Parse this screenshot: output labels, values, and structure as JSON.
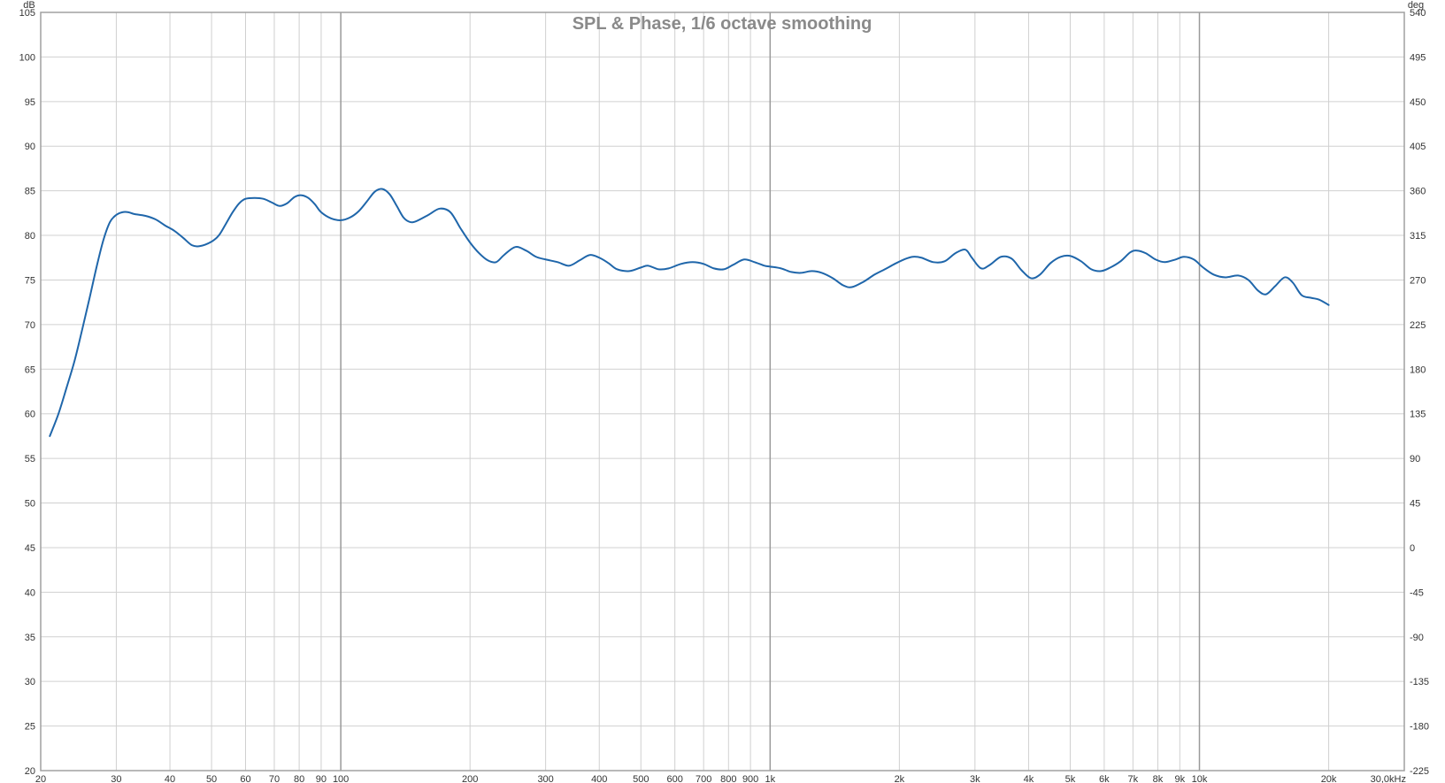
{
  "chart_data": {
    "type": "line",
    "title": "SPL & Phase, 1/6 octave smoothing",
    "y_unit_left": "dB",
    "y_unit_right": "deg",
    "x_scale": "log",
    "xlim": [
      20,
      30000
    ],
    "ylim_left": [
      20,
      105
    ],
    "ylim_right": [
      -225,
      540
    ],
    "grid": true,
    "x_ticks": [
      {
        "value": 20,
        "label": "20"
      },
      {
        "value": 30,
        "label": "30"
      },
      {
        "value": 40,
        "label": "40"
      },
      {
        "value": 50,
        "label": "50"
      },
      {
        "value": 60,
        "label": "60"
      },
      {
        "value": 70,
        "label": "70"
      },
      {
        "value": 80,
        "label": "80"
      },
      {
        "value": 90,
        "label": "90"
      },
      {
        "value": 100,
        "label": "100"
      },
      {
        "value": 200,
        "label": "200"
      },
      {
        "value": 300,
        "label": "300"
      },
      {
        "value": 400,
        "label": "400"
      },
      {
        "value": 500,
        "label": "500"
      },
      {
        "value": 600,
        "label": "600"
      },
      {
        "value": 700,
        "label": "700"
      },
      {
        "value": 800,
        "label": "800"
      },
      {
        "value": 900,
        "label": "900"
      },
      {
        "value": 1000,
        "label": "1k"
      },
      {
        "value": 2000,
        "label": "2k"
      },
      {
        "value": 3000,
        "label": "3k"
      },
      {
        "value": 4000,
        "label": "4k"
      },
      {
        "value": 5000,
        "label": "5k"
      },
      {
        "value": 6000,
        "label": "6k"
      },
      {
        "value": 7000,
        "label": "7k"
      },
      {
        "value": 8000,
        "label": "8k"
      },
      {
        "value": 9000,
        "label": "9k"
      },
      {
        "value": 10000,
        "label": "10k"
      },
      {
        "value": 20000,
        "label": "20k"
      },
      {
        "value": 30000,
        "label": "30,0kHz"
      }
    ],
    "x_major_ticks": [
      100,
      1000,
      10000
    ],
    "y_left_ticks": [
      105,
      100,
      95,
      90,
      85,
      80,
      75,
      70,
      65,
      60,
      55,
      50,
      45,
      40,
      35,
      30,
      25,
      20
    ],
    "y_right_ticks": [
      540,
      495,
      450,
      405,
      360,
      315,
      270,
      225,
      180,
      135,
      90,
      45,
      0,
      -45,
      -90,
      -135,
      -180,
      -225
    ],
    "series": [
      {
        "color": "#1f66aa",
        "points": [
          [
            21,
            57.5
          ],
          [
            22,
            60
          ],
          [
            23,
            63
          ],
          [
            24,
            66
          ],
          [
            25,
            69.5
          ],
          [
            26,
            73
          ],
          [
            27,
            76.5
          ],
          [
            28,
            79.5
          ],
          [
            29,
            81.5
          ],
          [
            30,
            82.3
          ],
          [
            31,
            82.6
          ],
          [
            32,
            82.6
          ],
          [
            33,
            82.4
          ],
          [
            35,
            82.2
          ],
          [
            37,
            81.8
          ],
          [
            39,
            81.1
          ],
          [
            41,
            80.5
          ],
          [
            43,
            79.7
          ],
          [
            45,
            78.9
          ],
          [
            47,
            78.8
          ],
          [
            50,
            79.3
          ],
          [
            52,
            80
          ],
          [
            54,
            81.3
          ],
          [
            56,
            82.6
          ],
          [
            58,
            83.6
          ],
          [
            60,
            84.1
          ],
          [
            63,
            84.2
          ],
          [
            66,
            84.1
          ],
          [
            69,
            83.7
          ],
          [
            72,
            83.3
          ],
          [
            75,
            83.6
          ],
          [
            78,
            84.3
          ],
          [
            81,
            84.5
          ],
          [
            84,
            84.2
          ],
          [
            87,
            83.5
          ],
          [
            90,
            82.6
          ],
          [
            95,
            81.9
          ],
          [
            100,
            81.7
          ],
          [
            105,
            82
          ],
          [
            110,
            82.7
          ],
          [
            115,
            83.8
          ],
          [
            120,
            84.9
          ],
          [
            125,
            85.2
          ],
          [
            130,
            84.6
          ],
          [
            135,
            83.3
          ],
          [
            140,
            82
          ],
          [
            145,
            81.5
          ],
          [
            150,
            81.6
          ],
          [
            160,
            82.3
          ],
          [
            170,
            83
          ],
          [
            180,
            82.6
          ],
          [
            190,
            80.8
          ],
          [
            200,
            79.2
          ],
          [
            210,
            78
          ],
          [
            220,
            77.2
          ],
          [
            230,
            77
          ],
          [
            240,
            77.8
          ],
          [
            255,
            78.7
          ],
          [
            270,
            78.3
          ],
          [
            285,
            77.6
          ],
          [
            300,
            77.3
          ],
          [
            320,
            77
          ],
          [
            340,
            76.6
          ],
          [
            360,
            77.2
          ],
          [
            380,
            77.8
          ],
          [
            400,
            77.5
          ],
          [
            420,
            76.9
          ],
          [
            440,
            76.2
          ],
          [
            470,
            76
          ],
          [
            500,
            76.4
          ],
          [
            520,
            76.6
          ],
          [
            550,
            76.2
          ],
          [
            580,
            76.3
          ],
          [
            620,
            76.8
          ],
          [
            660,
            77
          ],
          [
            700,
            76.8
          ],
          [
            740,
            76.3
          ],
          [
            780,
            76.2
          ],
          [
            820,
            76.7
          ],
          [
            870,
            77.3
          ],
          [
            920,
            77
          ],
          [
            970,
            76.6
          ],
          [
            1000,
            76.5
          ],
          [
            1060,
            76.3
          ],
          [
            1120,
            75.9
          ],
          [
            1180,
            75.8
          ],
          [
            1250,
            76
          ],
          [
            1320,
            75.8
          ],
          [
            1400,
            75.2
          ],
          [
            1480,
            74.4
          ],
          [
            1550,
            74.2
          ],
          [
            1650,
            74.8
          ],
          [
            1750,
            75.6
          ],
          [
            1850,
            76.2
          ],
          [
            1950,
            76.8
          ],
          [
            2050,
            77.3
          ],
          [
            2150,
            77.6
          ],
          [
            2250,
            77.5
          ],
          [
            2400,
            77
          ],
          [
            2550,
            77.1
          ],
          [
            2700,
            78
          ],
          [
            2850,
            78.4
          ],
          [
            2950,
            77.5
          ],
          [
            3100,
            76.3
          ],
          [
            3250,
            76.7
          ],
          [
            3450,
            77.6
          ],
          [
            3650,
            77.4
          ],
          [
            3850,
            76.1
          ],
          [
            4050,
            75.2
          ],
          [
            4250,
            75.6
          ],
          [
            4500,
            76.9
          ],
          [
            4750,
            77.6
          ],
          [
            5000,
            77.7
          ],
          [
            5300,
            77.1
          ],
          [
            5600,
            76.2
          ],
          [
            5900,
            76
          ],
          [
            6200,
            76.4
          ],
          [
            6550,
            77.1
          ],
          [
            6900,
            78.1
          ],
          [
            7150,
            78.3
          ],
          [
            7500,
            78
          ],
          [
            7900,
            77.3
          ],
          [
            8300,
            77
          ],
          [
            8800,
            77.3
          ],
          [
            9200,
            77.6
          ],
          [
            9700,
            77.3
          ],
          [
            10200,
            76.4
          ],
          [
            10800,
            75.6
          ],
          [
            11500,
            75.3
          ],
          [
            12300,
            75.5
          ],
          [
            13000,
            75
          ],
          [
            13700,
            73.8
          ],
          [
            14300,
            73.4
          ],
          [
            15000,
            74.3
          ],
          [
            15800,
            75.3
          ],
          [
            16500,
            74.7
          ],
          [
            17300,
            73.3
          ],
          [
            18200,
            73
          ],
          [
            19000,
            72.8
          ],
          [
            20000,
            72.2
          ]
        ]
      }
    ]
  }
}
